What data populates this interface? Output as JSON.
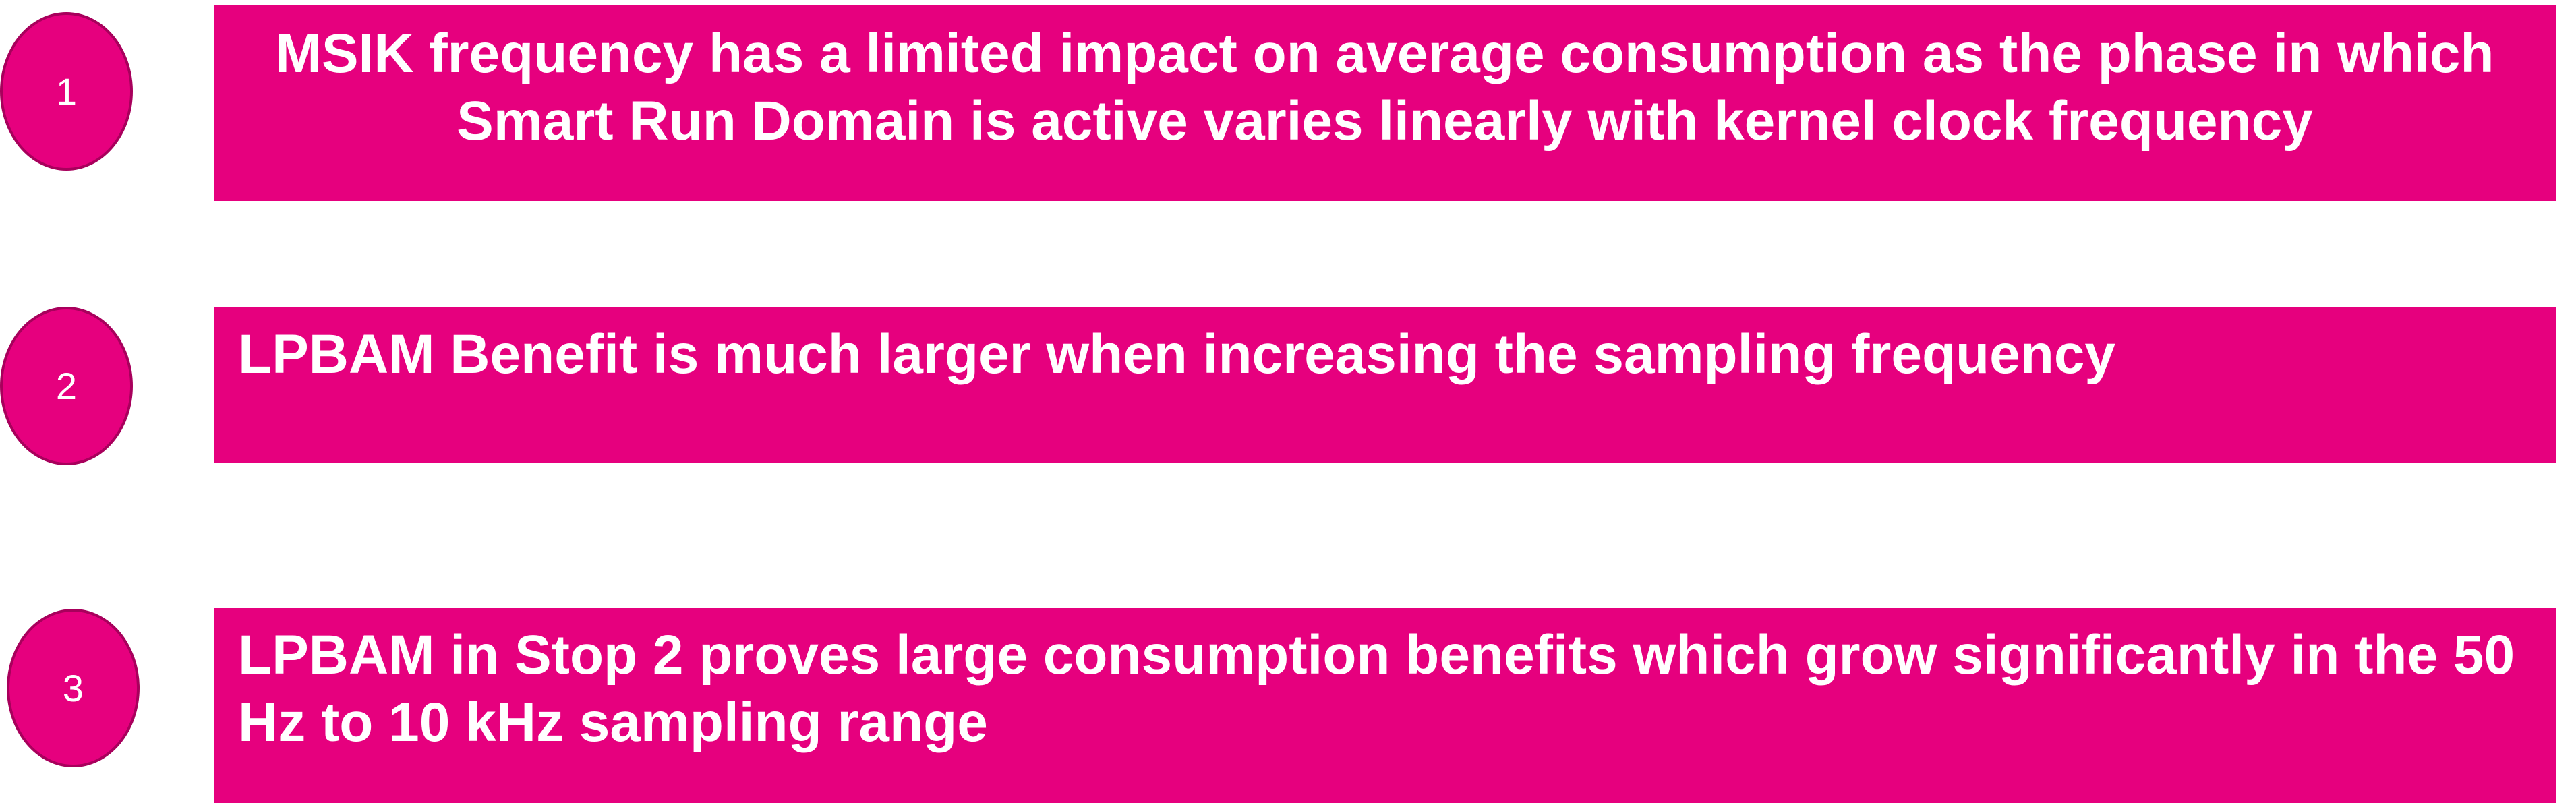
{
  "points": [
    {
      "number": "1",
      "text": "MSIK frequency has a limited impact on average consumption as the phase in which Smart Run Domain is active varies linearly with kernel clock frequency"
    },
    {
      "number": "2",
      "text": "LPBAM Benefit is much larger when increasing the sampling frequency"
    },
    {
      "number": "3",
      "text": "LPBAM in Stop 2 proves large consumption benefits which grow significantly in the 50 Hz to 10 kHz sampling range"
    }
  ],
  "colors": {
    "accent": "#e6007e",
    "badge_border": "#a8005c",
    "text": "#ffffff"
  }
}
